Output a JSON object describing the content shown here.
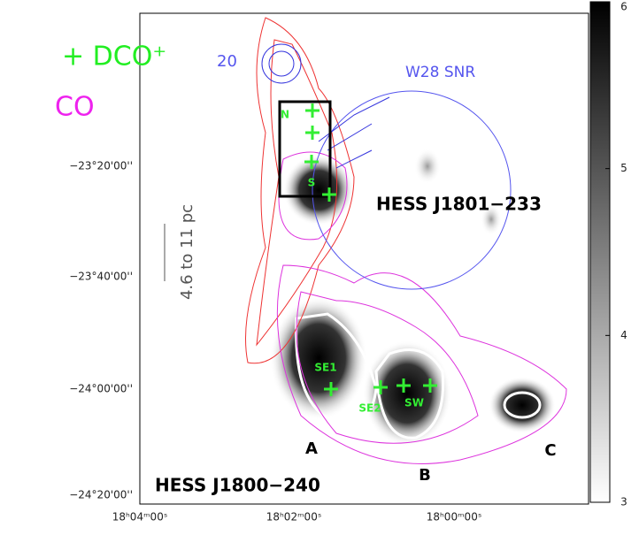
{
  "figure": {
    "legend": {
      "dco": "+ DCO⁺",
      "co": "CO"
    },
    "partial_label": "20",
    "snr_label": "W28 SNR",
    "sources": [
      "HESS J1801−233",
      "HESS J1800−240"
    ],
    "regions": [
      "A",
      "B",
      "C"
    ],
    "cores": [
      "N",
      "S",
      "SE1",
      "SE2",
      "SW"
    ],
    "scale_bar": "4.6 to 11 pc",
    "y_ticks": [
      "−23°20'00''",
      "−23°40'00''",
      "−24°00'00''",
      "−24°20'00''"
    ],
    "x_ticks": [
      "18ʰ04ᵐ00ˢ",
      "18ʰ02ᵐ00ˢ",
      "18ʰ00ᵐ00ˢ"
    ],
    "colorbar": {
      "range": [
        3,
        6
      ],
      "ticks": [
        3,
        4,
        5,
        6
      ]
    }
  }
}
